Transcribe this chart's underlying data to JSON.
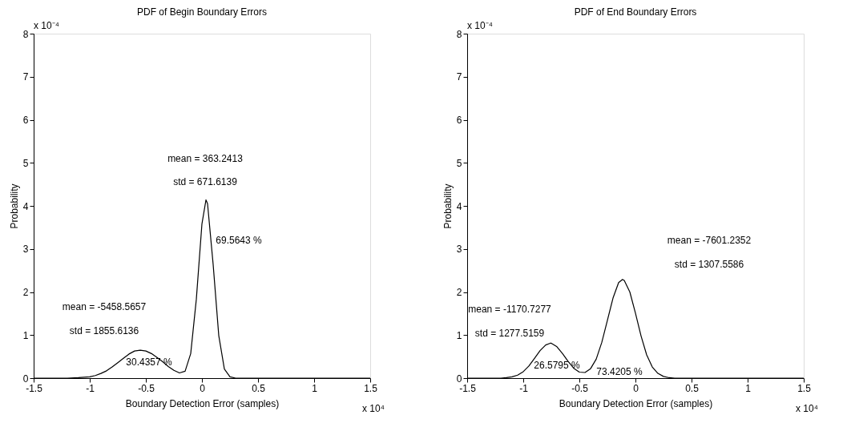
{
  "chart_data": [
    {
      "type": "line",
      "title": "PDF of Begin Boundary Errors",
      "xlabel": "Boundary Detection Error (samples)",
      "ylabel": "Probability",
      "x": [
        -1.5,
        -1.2,
        -1.1,
        -1.0,
        -0.95,
        -0.9,
        -0.85,
        -0.8,
        -0.75,
        -0.7,
        -0.65,
        -0.6,
        -0.55,
        -0.5,
        -0.45,
        -0.4,
        -0.35,
        -0.3,
        -0.25,
        -0.2,
        -0.15,
        -0.1,
        -0.05,
        0,
        0.036,
        0.05,
        0.1,
        0.15,
        0.2,
        0.25,
        0.3,
        0.4,
        1.5
      ],
      "series": [
        {
          "color": "#000000",
          "values": [
            0,
            0,
            0.01,
            0.03,
            0.06,
            0.11,
            0.17,
            0.26,
            0.36,
            0.46,
            0.56,
            0.63,
            0.65,
            0.63,
            0.57,
            0.48,
            0.38,
            0.27,
            0.18,
            0.12,
            0.16,
            0.57,
            1.83,
            3.58,
            4.14,
            4.05,
            2.64,
            0.99,
            0.21,
            0.03,
            0,
            0,
            0
          ]
        }
      ],
      "xlim": [
        -1.5,
        1.5
      ],
      "xticks": [
        -1.5,
        -1,
        -0.5,
        0,
        0.5,
        1,
        1.5
      ],
      "ylim": [
        0,
        8
      ],
      "yticks": [
        0,
        1,
        2,
        3,
        4,
        5,
        6,
        7,
        8
      ],
      "line_style": "solid",
      "annotations": [
        "x 10⁻⁴",
        "x 10⁴",
        "mean = 363.2413",
        "std = 671.6139",
        "69.5643 %",
        "mean = -5458.5657",
        "std = 1855.6136",
        "30.4357 %"
      ]
    },
    {
      "type": "line",
      "title": "PDF of End Boundary Errors",
      "xlabel": "Boundary Detection Error (samples)",
      "ylabel": "Probability",
      "x": [
        -1.5,
        -1.3,
        -1.2,
        -1.15,
        -1.1,
        -1.05,
        -1.0,
        -0.95,
        -0.9,
        -0.85,
        -0.8,
        -0.76,
        -0.75,
        -0.7,
        -0.65,
        -0.6,
        -0.55,
        -0.5,
        -0.45,
        -0.4,
        -0.35,
        -0.3,
        -0.25,
        -0.2,
        -0.15,
        -0.117,
        -0.1,
        -0.05,
        0,
        0.05,
        0.1,
        0.15,
        0.2,
        0.25,
        0.3,
        0.35,
        0.45,
        1.5
      ],
      "series": [
        {
          "color": "#000000",
          "values": [
            0,
            0,
            0,
            0.01,
            0.03,
            0.07,
            0.15,
            0.28,
            0.46,
            0.64,
            0.77,
            0.81,
            0.81,
            0.73,
            0.57,
            0.39,
            0.23,
            0.14,
            0.13,
            0.22,
            0.44,
            0.83,
            1.34,
            1.86,
            2.22,
            2.29,
            2.27,
            2.0,
            1.51,
            0.98,
            0.54,
            0.26,
            0.11,
            0.04,
            0.01,
            0,
            0,
            0
          ]
        }
      ],
      "xlim": [
        -1.5,
        1.5
      ],
      "xticks": [
        -1.5,
        -1,
        -0.5,
        0,
        0.5,
        1,
        1.5
      ],
      "ylim": [
        0,
        8
      ],
      "yticks": [
        0,
        1,
        2,
        3,
        4,
        5,
        6,
        7,
        8
      ],
      "line_style": "solid",
      "annotations": [
        "x 10⁻⁴",
        "x 10⁴",
        "mean = -7601.2352",
        "std = 1307.5586",
        "mean = -1170.7277",
        "std = 1277.5159",
        "26.5795 %",
        "73.4205 %"
      ]
    }
  ]
}
